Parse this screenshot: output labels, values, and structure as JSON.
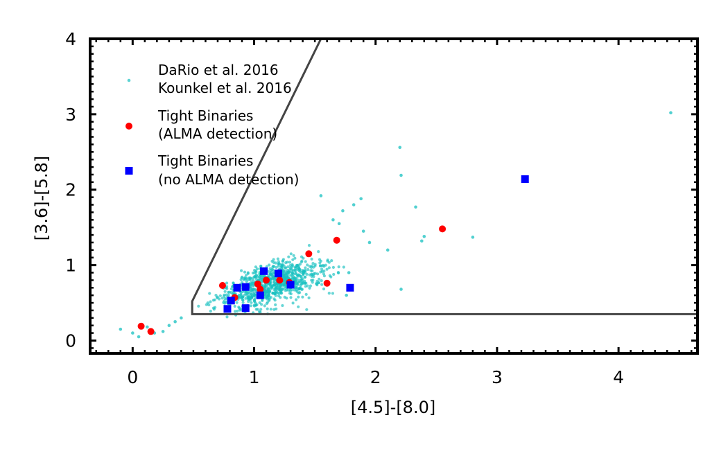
{
  "chart_data": {
    "type": "scatter",
    "title": "",
    "xlabel": "[4.5]-[8.0]",
    "ylabel": "[3.6]-[5.8]",
    "xlim": [
      -0.35,
      4.65
    ],
    "ylim": [
      -0.17,
      4.0
    ],
    "xticks": [
      0,
      1,
      2,
      3,
      4
    ],
    "yticks": [
      0,
      1,
      2,
      3,
      4
    ],
    "grid": false,
    "legend_position": "top-left",
    "colors": {
      "background_field": "#17c0c0",
      "tight_alma": "#ff0000",
      "tight_no_alma": "#0000ff",
      "region_line": "#444444"
    },
    "region_boundary": [
      [
        1.55,
        4.0
      ],
      [
        0.49,
        0.52
      ],
      [
        0.49,
        0.35
      ],
      [
        4.65,
        0.35
      ]
    ],
    "series": [
      {
        "name": "DaRio et al. 2016",
        "name2": "Kounkel et al. 2016",
        "marker": "small-dot",
        "x": [
          4.43,
          2.2,
          2.21,
          2.33,
          2.4,
          2.38,
          2.8,
          2.21,
          1.55,
          1.73,
          1.88,
          1.82,
          -0.1,
          0.0,
          0.05,
          0.12,
          0.18,
          0.25,
          0.3,
          0.35,
          0.4,
          1.65,
          1.7,
          1.9,
          1.95,
          2.1,
          1.76,
          1.78
        ],
        "y": [
          3.02,
          2.56,
          2.19,
          1.77,
          1.38,
          1.32,
          1.37,
          0.68,
          1.92,
          1.72,
          1.88,
          1.8,
          0.15,
          0.1,
          0.05,
          0.18,
          0.1,
          0.12,
          0.2,
          0.25,
          0.3,
          1.6,
          1.55,
          1.45,
          1.3,
          1.2,
          0.6,
          0.9
        ],
        "cloud": {
          "points": 900,
          "center": [
            1.15,
            0.75
          ],
          "spread": [
            0.35,
            0.22
          ],
          "slope": 0.45
        }
      },
      {
        "name": "Tight Binaries",
        "name2": "(ALMA detection)",
        "marker": "circle",
        "x": [
          0.07,
          0.15,
          0.74,
          0.84,
          1.03,
          1.05,
          1.1,
          1.21,
          1.29,
          1.45,
          1.6,
          1.68,
          2.55
        ],
        "y": [
          0.19,
          0.12,
          0.73,
          0.57,
          0.75,
          0.68,
          0.8,
          0.8,
          0.77,
          1.15,
          0.76,
          1.33,
          1.48
        ]
      },
      {
        "name": "Tight Binaries",
        "name2": "(no ALMA detection)",
        "marker": "square",
        "x": [
          0.78,
          0.81,
          0.86,
          0.93,
          0.93,
          1.05,
          1.08,
          1.2,
          1.3,
          1.79,
          3.23
        ],
        "y": [
          0.42,
          0.53,
          0.7,
          0.71,
          0.43,
          0.6,
          0.92,
          0.89,
          0.74,
          0.7,
          2.14
        ]
      }
    ]
  }
}
